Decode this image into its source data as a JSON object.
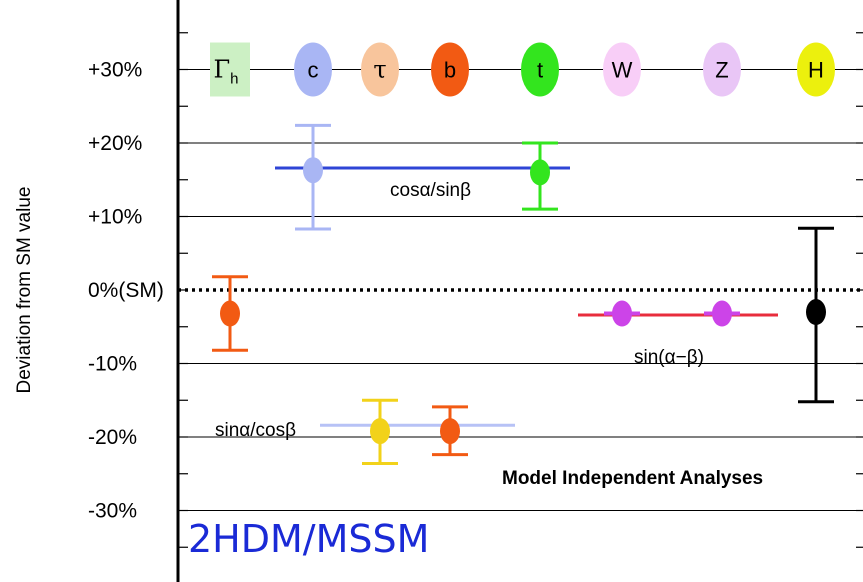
{
  "chart_data": {
    "type": "scatter",
    "title": "",
    "ylabel": "Deviation from SM value",
    "ylim": [
      -40,
      38
    ],
    "yticks": [
      {
        "value": 30,
        "label": "+30%"
      },
      {
        "value": 20,
        "label": "+20%"
      },
      {
        "value": 10,
        "label": "+10%"
      },
      {
        "value": 0,
        "label": "0%(SM)"
      },
      {
        "value": -10,
        "label": "-10%"
      },
      {
        "value": -20,
        "label": "-20%"
      },
      {
        "value": -30,
        "label": "-30%"
      }
    ],
    "grid": true,
    "categories": [
      {
        "key": "gamma_h",
        "label": "Γh",
        "color": "#ccf0c4",
        "shape": "square"
      },
      {
        "key": "c",
        "label": "c",
        "color": "#a9b6f4",
        "shape": "ellipse"
      },
      {
        "key": "tau",
        "label": "τ",
        "color": "#f8c59c",
        "shape": "ellipse"
      },
      {
        "key": "b",
        "label": "b",
        "color": "#f25a13",
        "shape": "ellipse"
      },
      {
        "key": "t",
        "label": "t",
        "color": "#33e51e",
        "shape": "ellipse"
      },
      {
        "key": "W",
        "label": "W",
        "color": "#f8cef7",
        "shape": "ellipse"
      },
      {
        "key": "Z",
        "label": "Z",
        "color": "#e9c6f6",
        "shape": "ellipse"
      },
      {
        "key": "H",
        "label": "H",
        "color": "#ecf00d",
        "shape": "ellipse"
      }
    ],
    "points": [
      {
        "category": "gamma_h",
        "value": -3.2,
        "err_low": -8.2,
        "err_high": 1.8,
        "color": "#f25a13"
      },
      {
        "category": "c",
        "value": 16.3,
        "err_low": 8.3,
        "err_high": 22.4,
        "color": "#a9b6f4"
      },
      {
        "category": "t",
        "value": 16.0,
        "err_low": 11.0,
        "err_high": 20.0,
        "color": "#33e51e"
      },
      {
        "category": "W",
        "value": -3.2,
        "err_low": -4.2,
        "err_high": -2.2,
        "color": "#cc44e8"
      },
      {
        "category": "Z",
        "value": -3.2,
        "err_low": -4.2,
        "err_high": -2.2,
        "color": "#cc44e8"
      },
      {
        "category": "H",
        "value": -3.0,
        "err_low": -15.2,
        "err_high": 8.4,
        "color": "#000000"
      },
      {
        "category": "tau",
        "value": -19.2,
        "err_low": -23.6,
        "err_high": -15.0,
        "color": "#f2d21a"
      },
      {
        "category": "b",
        "value": -19.2,
        "err_low": -22.4,
        "err_high": -15.9,
        "color": "#f25a13"
      }
    ],
    "lines": [
      {
        "label": "cosα/sinβ",
        "value": 16.6,
        "from": "c",
        "to": "t",
        "color": "#2f45d6"
      },
      {
        "label": "sin(α−β)",
        "value": -3.4,
        "from": "W",
        "to": "Z",
        "color": "#e82d3c"
      },
      {
        "label": "sinα/cosβ",
        "value": -18.4,
        "from": "tau",
        "to": "b",
        "color": "#b7c2f6"
      }
    ],
    "annotations": {
      "analysis_label": "Model Independent Analyses",
      "model_label": "2HDM/MSSM"
    }
  }
}
